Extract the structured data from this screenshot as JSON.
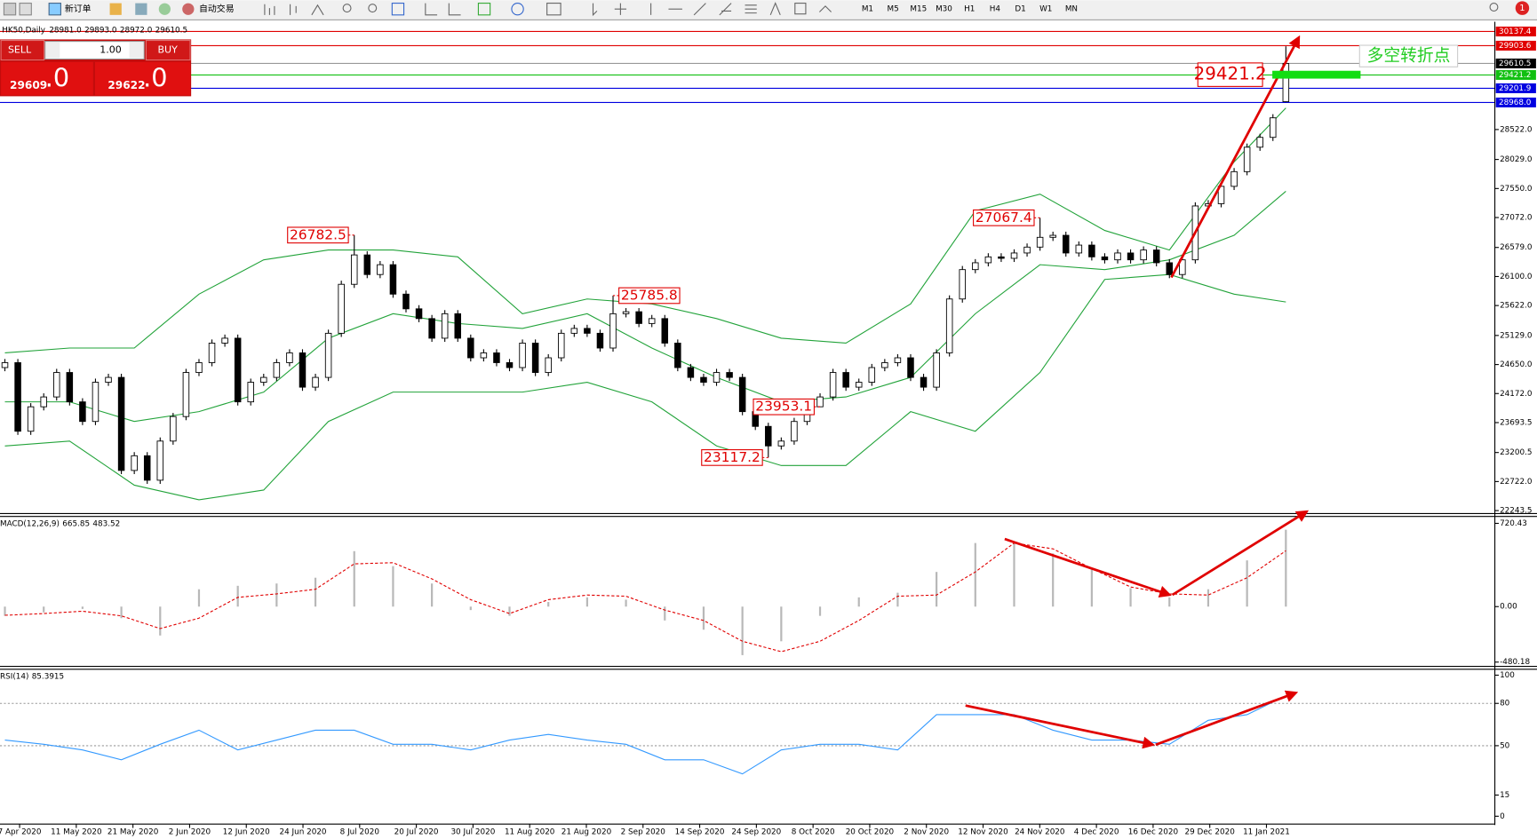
{
  "toolbar": {
    "new_order": "新订单",
    "auto_trading": "自动交易",
    "timeframes": [
      "M1",
      "M5",
      "M15",
      "M30",
      "H1",
      "H4",
      "D1",
      "W1",
      "MN"
    ],
    "notification": "1"
  },
  "trade_panel": {
    "sell": "SELL",
    "buy": "BUY",
    "lots": "1.00",
    "sell_price": "29609",
    "sell_fraction": ".0",
    "buy_price": "29622",
    "buy_fraction": ".0"
  },
  "time_axis": {
    "labels": [
      "7 Apr 2020",
      "11 May 2020",
      "21 May 2020",
      "2 Jun 2020",
      "12 Jun 2020",
      "24 Jun 2020",
      "8 Jul 2020",
      "20 Jul 2020",
      "30 Jul 2020",
      "11 Aug 2020",
      "21 Aug 2020",
      "2 Sep 2020",
      "14 Sep 2020",
      "24 Sep 2020",
      "8 Oct 2020",
      "20 Oct 2020",
      "2 Nov 2020",
      "12 Nov 2020",
      "24 Nov 2020",
      "4 Dec 2020",
      "16 Dec 2020",
      "29 Dec 2020",
      "11 Jan 2021"
    ]
  },
  "chart_data": [
    {
      "type": "candlestick",
      "symbol": "HK50,Daily",
      "ohlc_labels": [
        "28981.0",
        "29893.0",
        "28972.0",
        "29610.5"
      ],
      "candles": [
        [
          24600,
          24741,
          24540,
          24681
        ],
        [
          24681,
          24741,
          23491,
          23551
        ],
        [
          23551,
          24014,
          23491,
          23954
        ],
        [
          23954,
          24176,
          23894,
          24116
        ],
        [
          24116,
          24579,
          24056,
          24519
        ],
        [
          24519,
          24579,
          23975,
          24035
        ],
        [
          24035,
          24095,
          23652,
          23712
        ],
        [
          23712,
          24418,
          23652,
          24358
        ],
        [
          24358,
          24498,
          24298,
          24438
        ],
        [
          24438,
          24498,
          22845,
          22905
        ],
        [
          22905,
          23207,
          22845,
          23147
        ],
        [
          23147,
          23207,
          22684,
          22744
        ],
        [
          22744,
          23449,
          22684,
          23389
        ],
        [
          23389,
          23853,
          23329,
          23793
        ],
        [
          23793,
          24579,
          23733,
          24519
        ],
        [
          24519,
          24741,
          24459,
          24681
        ],
        [
          24681,
          25063,
          24621,
          25003
        ],
        [
          25003,
          25144,
          24943,
          25084
        ],
        [
          25084,
          25144,
          23975,
          24035
        ],
        [
          24035,
          24418,
          23975,
          24358
        ],
        [
          24358,
          24498,
          24298,
          24438
        ],
        [
          24438,
          24741,
          24378,
          24681
        ],
        [
          24681,
          24902,
          24621,
          24842
        ],
        [
          24842,
          24902,
          24217,
          24277
        ],
        [
          24277,
          24498,
          24217,
          24438
        ],
        [
          24438,
          25225,
          24378,
          25165
        ],
        [
          25165,
          26032,
          25105,
          25972
        ],
        [
          25972,
          26782.5,
          25912,
          26456
        ],
        [
          26456,
          26516,
          26073,
          26133
        ],
        [
          26133,
          26355,
          26073,
          26295
        ],
        [
          26295,
          26355,
          25750,
          25810
        ],
        [
          25810,
          25870,
          25508,
          25568
        ],
        [
          25568,
          25628,
          25347,
          25407
        ],
        [
          25407,
          25467,
          25024,
          25084
        ],
        [
          25084,
          25547,
          25024,
          25487
        ],
        [
          25487,
          25547,
          25024,
          25084
        ],
        [
          25084,
          25144,
          24701,
          24761
        ],
        [
          24761,
          24902,
          24701,
          24842
        ],
        [
          24842,
          24902,
          24621,
          24681
        ],
        [
          24681,
          24741,
          24540,
          24600
        ],
        [
          24600,
          25063,
          24540,
          25003
        ],
        [
          25003,
          25063,
          24459,
          24519
        ],
        [
          24519,
          24821,
          24459,
          24761
        ],
        [
          24761,
          25225,
          24701,
          25165
        ],
        [
          25165,
          25305,
          25105,
          25245
        ],
        [
          25245,
          25305,
          25105,
          25165
        ],
        [
          25165,
          25225,
          24862,
          24922
        ],
        [
          24922,
          25785.8,
          24862,
          25487
        ],
        [
          25487,
          25580,
          25427,
          25520
        ],
        [
          25520,
          25580,
          25266,
          25326
        ],
        [
          25326,
          25467,
          25266,
          25407
        ],
        [
          25407,
          25467,
          24943,
          25003
        ],
        [
          25003,
          25063,
          24540,
          24600
        ],
        [
          24600,
          24660,
          24378,
          24438
        ],
        [
          24438,
          24498,
          24298,
          24358
        ],
        [
          24358,
          24579,
          24298,
          24519
        ],
        [
          24519,
          24579,
          24378,
          24438
        ],
        [
          24438,
          24498,
          23814,
          23874
        ],
        [
          23874,
          23934,
          23571,
          23631
        ],
        [
          23631,
          23691,
          23117.2,
          23309
        ],
        [
          23309,
          23449,
          23249,
          23389
        ],
        [
          23389,
          23772,
          23329,
          23712
        ],
        [
          23712,
          24014,
          23652,
          23954
        ],
        [
          23954,
          24176,
          23953.1,
          24116
        ],
        [
          24116,
          24579,
          24056,
          24519
        ],
        [
          24519,
          24579,
          24217,
          24277
        ],
        [
          24277,
          24418,
          24217,
          24358
        ],
        [
          24358,
          24660,
          24298,
          24600
        ],
        [
          24600,
          24741,
          24540,
          24681
        ],
        [
          24681,
          24821,
          24621,
          24761
        ],
        [
          24761,
          24821,
          24378,
          24438
        ],
        [
          24438,
          24498,
          24217,
          24277
        ],
        [
          24277,
          24902,
          24217,
          24842
        ],
        [
          24842,
          25790,
          24782,
          25730
        ],
        [
          25730,
          26274,
          25670,
          26214
        ],
        [
          26214,
          26387,
          26154,
          26327
        ],
        [
          26327,
          26484,
          26267,
          26424
        ],
        [
          26424,
          26484,
          26340,
          26400
        ],
        [
          26400,
          26548,
          26340,
          26488
        ],
        [
          26488,
          26645,
          26428,
          26585
        ],
        [
          26585,
          27067.4,
          26525,
          26746
        ],
        [
          26746,
          26839,
          26686,
          26779
        ],
        [
          26779,
          26839,
          26428,
          26488
        ],
        [
          26488,
          26678,
          26428,
          26618
        ],
        [
          26618,
          26678,
          26364,
          26424
        ],
        [
          26424,
          26484,
          26315,
          26375
        ],
        [
          26375,
          26548,
          26315,
          26488
        ],
        [
          26488,
          26548,
          26315,
          26375
        ],
        [
          26375,
          26597,
          26315,
          26537
        ],
        [
          26537,
          26597,
          26267,
          26327
        ],
        [
          26327,
          26387,
          26073,
          26133
        ],
        [
          26133,
          26435,
          26073,
          26375
        ],
        [
          26375,
          27323,
          26315,
          27263
        ],
        [
          27263,
          27360,
          27203,
          27300
        ],
        [
          27300,
          27646,
          27240,
          27586
        ],
        [
          27586,
          27888,
          27526,
          27828
        ],
        [
          27828,
          28291,
          27768,
          28231
        ],
        [
          28231,
          28453,
          28171,
          28393
        ],
        [
          28393,
          28775,
          28333,
          28715
        ],
        [
          28981.0,
          29893.0,
          28972.0,
          29610.5
        ]
      ],
      "bollinger": {
        "x": [
          0,
          5,
          10,
          15,
          20,
          25,
          30,
          35,
          40,
          45,
          50,
          55,
          60,
          65,
          70,
          75,
          80,
          85,
          90,
          95,
          99
        ],
        "upper": [
          24842,
          24922,
          24922,
          25810,
          26375,
          26537,
          26537,
          26424,
          25487,
          25730,
          25649,
          25407,
          25084,
          25003,
          25649,
          27182,
          27457,
          26859,
          26537,
          27989,
          28877
        ],
        "middle": [
          24035,
          24035,
          23712,
          23874,
          24196,
          25084,
          25487,
          25326,
          25245,
          25487,
          24922,
          24438,
          24035,
          24116,
          24438,
          25487,
          26295,
          26214,
          26375,
          26779,
          27505
        ],
        "lower": [
          23309,
          23389,
          22663,
          22421,
          22582,
          23712,
          24196,
          24196,
          24196,
          24358,
          24035,
          23309,
          22986,
          22986,
          23874,
          23551,
          24519,
          26052,
          26133,
          25810,
          25681
        ],
        "color": "#22a33a"
      },
      "ylim": [
        22195,
        30297
      ],
      "yticks": [
        {
          "value": 28522.0,
          "label": "28522.0"
        },
        {
          "value": 28029.0,
          "label": "28029.0"
        },
        {
          "value": 27550.0,
          "label": "27550.0"
        },
        {
          "value": 27072.0,
          "label": "27072.0"
        },
        {
          "value": 26579.0,
          "label": "26579.0"
        },
        {
          "value": 26100.0,
          "label": "26100.0"
        },
        {
          "value": 25622.0,
          "label": "25622.0"
        },
        {
          "value": 25129.0,
          "label": "25129.0"
        },
        {
          "value": 24650.0,
          "label": "24650.0"
        },
        {
          "value": 24172.0,
          "label": "24172.0"
        },
        23693.5,
        23200.5,
        {
          "value": 22722.0,
          "label": "22722.0"
        },
        22243.5
      ],
      "levels": [
        {
          "value": 30137.4,
          "color": "#e00000"
        },
        {
          "value": 29903.6,
          "color": "#e00000"
        },
        {
          "value": 29610.5,
          "color": "#000000"
        },
        {
          "value": 29421.2,
          "color": "#11c011"
        },
        {
          "value": 29201.9,
          "color": "#0000e0"
        },
        {
          "value": 28968.0,
          "label": "28968.0",
          "color": "#0000e0"
        }
      ],
      "extremes": [
        26782.5,
        25785.8,
        23117.2,
        23953.1,
        27067.4
      ],
      "annotation": "多空转折点"
    },
    {
      "type": "macd",
      "title": "MACD(12,26,9)",
      "x": [
        0,
        3,
        6,
        9,
        12,
        15,
        18,
        21,
        24,
        27,
        30,
        33,
        36,
        39,
        42,
        45,
        48,
        51,
        54,
        57,
        60,
        63,
        66,
        69,
        72,
        75,
        78,
        81,
        84,
        87,
        90,
        93,
        96,
        99
      ],
      "histogram": [
        -80,
        -50,
        -20,
        -100,
        -250,
        150,
        180,
        200,
        250,
        480,
        350,
        200,
        -30,
        -80,
        40,
        80,
        60,
        -120,
        -200,
        -420,
        -300,
        -80,
        80,
        120,
        300,
        550,
        560,
        460,
        320,
        160,
        80,
        150,
        400,
        665.85
      ],
      "signal": [
        -75,
        -60,
        -40,
        -80,
        -190,
        -100,
        80,
        110,
        150,
        370,
        380,
        240,
        60,
        -60,
        60,
        100,
        90,
        -30,
        -120,
        -300,
        -390,
        -300,
        -120,
        90,
        100,
        300,
        550,
        500,
        330,
        170,
        110,
        100,
        250,
        483.52
      ],
      "ylim": [
        -517,
        780
      ],
      "yticks": [
        720.43,
        {
          "value": 0,
          "label": "0.00"
        },
        -480.18
      ]
    },
    {
      "type": "rsi",
      "title": "RSI(14)",
      "x": [
        0,
        3,
        6,
        9,
        12,
        15,
        18,
        21,
        24,
        27,
        30,
        33,
        36,
        39,
        42,
        45,
        48,
        51,
        54,
        57,
        60,
        63,
        66,
        69,
        72,
        75,
        78,
        81,
        84,
        87,
        90,
        93,
        96,
        99
      ],
      "values": [
        54,
        51,
        47,
        40,
        51,
        61,
        47,
        54,
        61,
        61,
        51,
        51,
        47,
        54,
        58,
        54,
        51,
        40,
        40,
        30,
        47,
        51,
        51,
        47,
        72,
        72,
        72,
        61,
        54,
        54,
        51,
        68,
        72,
        85.3915
      ],
      "ylim": [
        0,
        100
      ],
      "yticks": [
        100,
        80,
        50,
        15,
        0
      ],
      "levels": [
        80,
        50
      ],
      "color": "#3399ff"
    }
  ]
}
